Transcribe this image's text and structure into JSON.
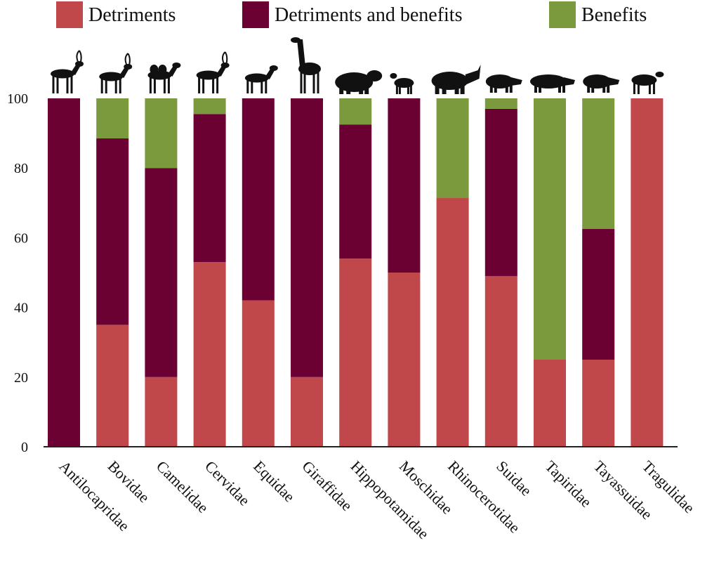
{
  "chart_data": {
    "type": "bar",
    "stacked": true,
    "title": "",
    "xlabel": "",
    "ylabel": "",
    "ylim": [
      0,
      100
    ],
    "yticks": [
      "0",
      "20",
      "40",
      "60",
      "80",
      "100"
    ],
    "grid": false,
    "legend_position": "top",
    "categories": [
      "Antilocapridae",
      "Bovidae",
      "Camelidae",
      "Cervidae",
      "Equidae",
      "Giraffidae",
      "Hippopotamidae",
      "Moschidae",
      "Rhinocerotidae",
      "Suidae",
      "Tapiridae",
      "Tayassuidae",
      "Tragulidae"
    ],
    "category_icons": [
      "pronghorn-icon",
      "ibex-icon",
      "camel-icon",
      "deer-icon",
      "zebra-icon",
      "giraffe-icon",
      "hippopotamus-icon",
      "musk-deer-icon",
      "rhinoceros-icon",
      "pig-icon",
      "tapir-icon",
      "peccary-icon",
      "chevrotain-icon"
    ],
    "series": [
      {
        "name": "Detriments",
        "color": "#c0474a",
        "values": [
          0,
          35,
          20,
          53,
          42,
          20,
          54,
          50,
          71.5,
          49,
          25,
          25,
          100
        ]
      },
      {
        "name": "Detriments and benefits",
        "color": "#6b0033",
        "values": [
          100,
          53.5,
          60,
          42.5,
          58,
          80,
          38.5,
          50,
          0,
          48,
          0,
          37.5,
          0
        ]
      },
      {
        "name": "Benefits",
        "color": "#7b9a3e",
        "values": [
          0,
          11.5,
          20,
          4.5,
          0,
          0,
          7.5,
          0,
          28.5,
          3,
          75,
          37.5,
          0
        ]
      }
    ]
  }
}
